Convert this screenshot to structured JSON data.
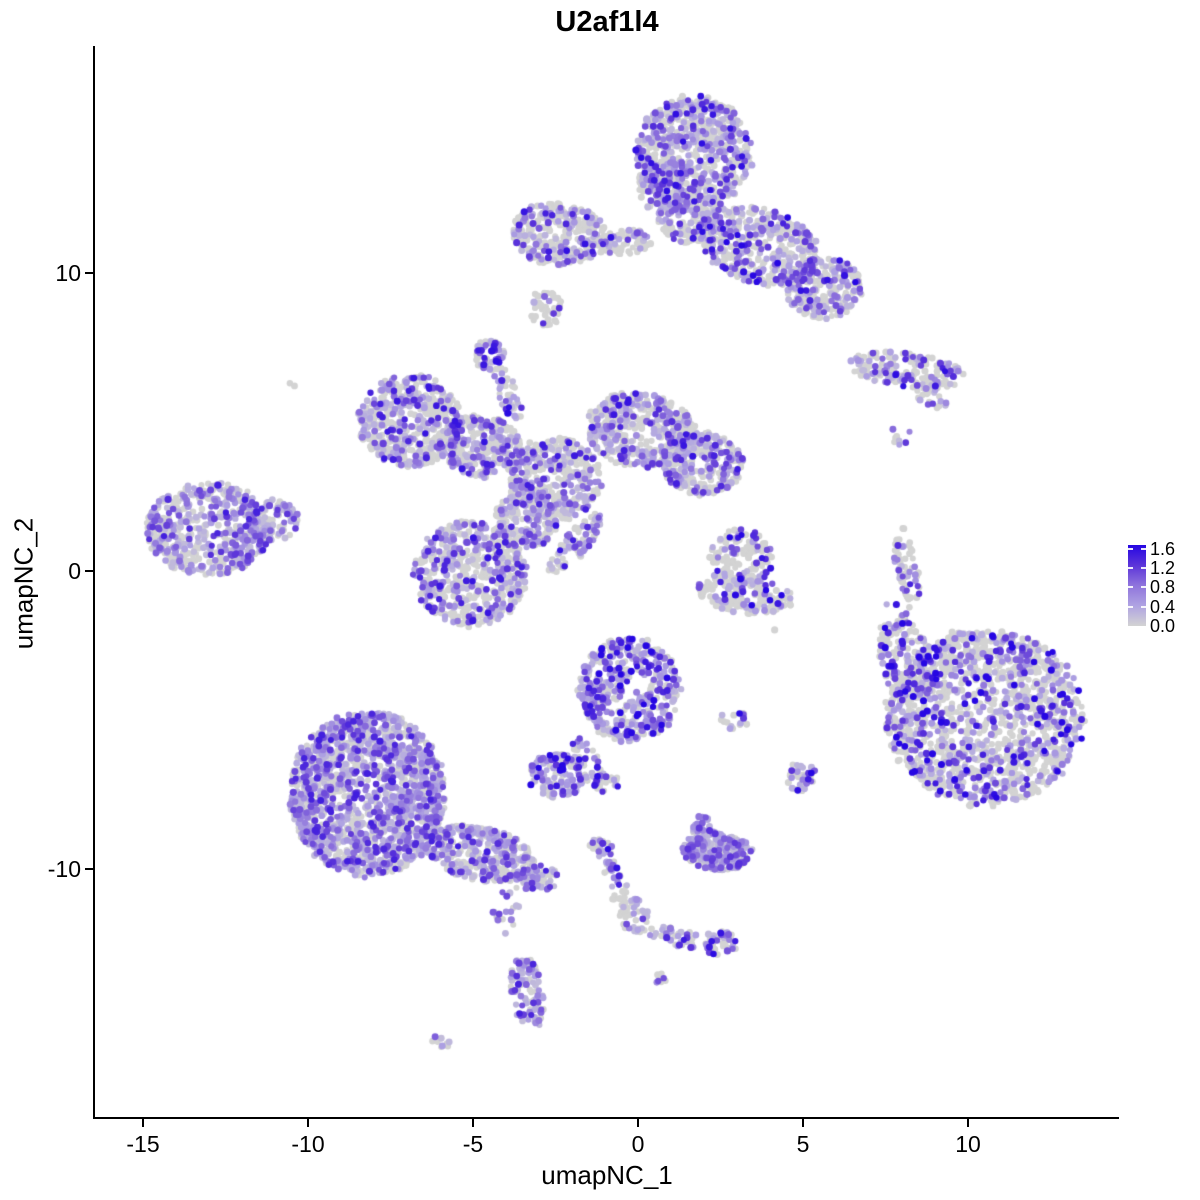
{
  "title": "U2af1l4",
  "axes": {
    "x": {
      "label": "umapNC_1",
      "ticks": [
        -15,
        -10,
        -5,
        0,
        5,
        10
      ],
      "range": [
        -16.45,
        14.57
      ]
    },
    "y": {
      "label": "umapNC_2",
      "ticks": [
        -10,
        0,
        10
      ],
      "range": [
        -18.36,
        17.58
      ]
    }
  },
  "legend": {
    "labels": [
      "1.6",
      "1.2",
      "0.8",
      "0.4",
      "0.0"
    ],
    "values": [
      1.6,
      1.2,
      0.8,
      0.4,
      0.0
    ],
    "tick_values": [
      0.4,
      0.8,
      1.2,
      1.6
    ],
    "max": 1.68
  },
  "colors": {
    "background": "#FFFFFF",
    "axis": "#000000",
    "text": "#000000",
    "zero_point": "#D3D3D3",
    "gradient": [
      "#D3D3D3",
      "#AFA3E2",
      "#8F74DC",
      "#5C35D9",
      "#2606E3"
    ]
  },
  "render": {
    "seed": 1337,
    "point_radius": 3.3,
    "radius_jitter": 0.3
  },
  "chart_data": {
    "type": "scatter",
    "title": "U2af1l4",
    "xlabel": "umapNC_1",
    "ylabel": "umapNC_2",
    "xlim": [
      -16.45,
      14.57
    ],
    "ylim": [
      -18.36,
      17.58
    ],
    "value_range": [
      0.0,
      1.68
    ],
    "legend_breaks": [
      0.0,
      0.4,
      0.8,
      1.2,
      1.6
    ],
    "grid": false,
    "note": "UMAP feature plot; ~11000 cells; gray = zero expression, purple-blue = expression level; clusters parameterized as ellipse blobs in data coords",
    "clusters": [
      {
        "name": "top-head",
        "frac_pos": 0.45,
        "boost": 1.0,
        "blobs": [
          {
            "cx": 1.7,
            "cy": 14.0,
            "rx": 1.75,
            "ry": 1.95,
            "rot": 0,
            "n": 680
          },
          {
            "cx": 0.9,
            "cy": 13.0,
            "rx": 0.9,
            "ry": 1.1,
            "rot": 0,
            "n": 160
          }
        ]
      },
      {
        "name": "top-neck",
        "frac_pos": 0.38,
        "boost": 1.0,
        "blobs": [
          {
            "cx": 1.55,
            "cy": 11.9,
            "rx": 0.95,
            "ry": 0.9,
            "rot": 0,
            "n": 170
          }
        ]
      },
      {
        "name": "top-right-wing",
        "frac_pos": 0.42,
        "boost": 1.05,
        "blobs": [
          {
            "cx": 3.7,
            "cy": 10.9,
            "rx": 1.9,
            "ry": 1.25,
            "rot": -18,
            "n": 430
          },
          {
            "cx": 5.65,
            "cy": 9.5,
            "rx": 1.15,
            "ry": 1.05,
            "rot": 0,
            "n": 270
          }
        ]
      },
      {
        "name": "top-bridge",
        "frac_pos": 0.35,
        "boost": 1.0,
        "blobs": [
          {
            "cx": -0.4,
            "cy": 11.05,
            "rx": 0.8,
            "ry": 0.42,
            "rot": 5,
            "n": 90
          }
        ]
      },
      {
        "name": "top-left-wing",
        "frac_pos": 0.4,
        "boost": 1.0,
        "blobs": [
          {
            "cx": -2.4,
            "cy": 11.3,
            "rx": 1.45,
            "ry": 1.05,
            "rot": -8,
            "n": 300
          }
        ]
      },
      {
        "name": "small-blob-below-left-wing",
        "frac_pos": 0.15,
        "boost": 1.0,
        "blobs": [
          {
            "cx": -2.8,
            "cy": 8.8,
            "rx": 0.55,
            "ry": 0.62,
            "rot": 0,
            "n": 40
          }
        ]
      },
      {
        "name": "purple-knot",
        "frac_pos": 0.65,
        "boost": 1.05,
        "blobs": [
          {
            "cx": -4.5,
            "cy": 7.25,
            "rx": 0.45,
            "ry": 0.55,
            "rot": 0,
            "n": 55
          },
          {
            "cx": -3.95,
            "cy": 5.95,
            "rx": 0.32,
            "ry": 1.0,
            "rot": 20,
            "n": 45
          }
        ]
      },
      {
        "name": "central-network",
        "frac_pos": 0.45,
        "boost": 0.95,
        "blobs": [
          {
            "cx": -6.9,
            "cy": 5.05,
            "rx": 1.55,
            "ry": 1.55,
            "rot": 0,
            "n": 500
          },
          {
            "cx": -4.8,
            "cy": 4.2,
            "rx": 1.25,
            "ry": 1.05,
            "rot": -15,
            "n": 300
          },
          {
            "cx": -2.5,
            "cy": 3.1,
            "rx": 1.4,
            "ry": 1.4,
            "rot": 0,
            "n": 380
          },
          {
            "cx": 0.1,
            "cy": 4.7,
            "rx": 1.7,
            "ry": 1.25,
            "rot": -12,
            "n": 450
          },
          {
            "cx": 1.95,
            "cy": 3.6,
            "rx": 1.25,
            "ry": 1.05,
            "rot": 0,
            "n": 300
          },
          {
            "cx": -5.1,
            "cy": -0.1,
            "rx": 1.7,
            "ry": 1.75,
            "rot": 0,
            "n": 560
          },
          {
            "cx": -3.4,
            "cy": 1.7,
            "rx": 0.95,
            "ry": 0.95,
            "rot": 0,
            "n": 200
          },
          {
            "cx": -1.9,
            "cy": 0.9,
            "rx": 0.4,
            "ry": 1.25,
            "rot": -38,
            "n": 80
          }
        ]
      },
      {
        "name": "far-left",
        "frac_pos": 0.55,
        "boost": 0.9,
        "blobs": [
          {
            "cx": -13.0,
            "cy": 1.4,
            "rx": 1.9,
            "ry": 1.55,
            "rot": 0,
            "n": 540
          },
          {
            "cx": -11.1,
            "cy": 1.7,
            "rx": 0.8,
            "ry": 0.7,
            "rot": 0,
            "n": 100
          }
        ]
      },
      {
        "name": "lone-gray-dot",
        "frac_pos": 0.0,
        "boost": 1.0,
        "blobs": [
          {
            "cx": -10.5,
            "cy": 6.2,
            "rx": 0.12,
            "ry": 0.12,
            "rot": 0,
            "n": 2
          }
        ]
      },
      {
        "name": "right-top-strip",
        "frac_pos": 0.4,
        "boost": 1.0,
        "blobs": [
          {
            "cx": 8.1,
            "cy": 6.75,
            "rx": 1.75,
            "ry": 0.6,
            "rot": -8,
            "n": 180
          },
          {
            "cx": 8.9,
            "cy": 5.8,
            "rx": 0.55,
            "ry": 0.3,
            "rot": -30,
            "n": 22
          },
          {
            "cx": 7.9,
            "cy": 4.6,
            "rx": 0.35,
            "ry": 0.45,
            "rot": 0,
            "n": 8
          }
        ]
      },
      {
        "name": "right-arc",
        "frac_pos": 0.45,
        "boost": 1.0,
        "blobs": [
          {
            "cx": 8.15,
            "cy": 0.2,
            "rx": 0.35,
            "ry": 1.3,
            "rot": 10,
            "n": 62
          },
          {
            "cx": 8.2,
            "cy": -1.5,
            "rx": 0.2,
            "ry": 0.35,
            "rot": 0,
            "n": 5
          }
        ]
      },
      {
        "name": "center-small",
        "frac_pos": 0.31,
        "boost": 1.1,
        "blobs": [
          {
            "cx": 3.1,
            "cy": 0.4,
            "rx": 0.95,
            "ry": 1.0,
            "rot": 0,
            "n": 165
          },
          {
            "cx": 3.25,
            "cy": -0.8,
            "rx": 1.5,
            "ry": 0.62,
            "rot": -8,
            "n": 155
          }
        ]
      },
      {
        "name": "bottom-right-big",
        "frac_pos": 0.36,
        "boost": 1.2,
        "blobs": [
          {
            "cx": 10.5,
            "cy": -4.9,
            "rx": 3.0,
            "ry": 2.95,
            "rot": 0,
            "n": 1500
          },
          {
            "cx": 8.1,
            "cy": -3.0,
            "rx": 0.8,
            "ry": 1.4,
            "rot": 15,
            "n": 170
          },
          {
            "cx": 7.7,
            "cy": -2.0,
            "rx": 0.5,
            "ry": 1.1,
            "rot": 0,
            "n": 14
          },
          {
            "cx": 4.95,
            "cy": -6.9,
            "rx": 0.45,
            "ry": 0.5,
            "rot": 0,
            "n": 40
          }
        ]
      },
      {
        "name": "mid-dense",
        "frac_pos": 0.66,
        "boost": 1.15,
        "blobs": [
          {
            "cx": -0.25,
            "cy": -4.0,
            "rx": 1.55,
            "ry": 1.75,
            "rot": 0,
            "n": 460
          },
          {
            "cx": -1.45,
            "cy": -6.5,
            "rx": 0.35,
            "ry": 1.0,
            "rot": 25,
            "n": 45
          },
          {
            "cx": -2.45,
            "cy": -6.85,
            "rx": 0.9,
            "ry": 0.75,
            "rot": 0,
            "n": 130
          },
          {
            "cx": -0.95,
            "cy": -7.1,
            "rx": 0.4,
            "ry": 0.3,
            "rot": 0,
            "n": 20
          }
        ]
      },
      {
        "name": "small-pair-right-of-mid",
        "frac_pos": 0.5,
        "boost": 1.0,
        "blobs": [
          {
            "cx": 2.9,
            "cy": -5.0,
            "rx": 0.5,
            "ry": 0.3,
            "rot": 0,
            "n": 18
          }
        ]
      },
      {
        "name": "bottom-left-big",
        "frac_pos": 0.62,
        "boost": 0.9,
        "blobs": [
          {
            "cx": -8.2,
            "cy": -7.5,
            "rx": 2.35,
            "ry": 2.75,
            "rot": 0,
            "n": 1650
          },
          {
            "cx": -4.8,
            "cy": -9.5,
            "rx": 1.7,
            "ry": 0.9,
            "rot": -14,
            "n": 360
          },
          {
            "cx": -3.0,
            "cy": -10.3,
            "rx": 0.6,
            "ry": 0.45,
            "rot": 0,
            "n": 60
          },
          {
            "cx": -4.0,
            "cy": -11.3,
            "rx": 0.4,
            "ry": 0.9,
            "rot": -5,
            "n": 22
          },
          {
            "cx": -3.35,
            "cy": -14.2,
            "rx": 0.5,
            "ry": 1.25,
            "rot": 8,
            "n": 110
          },
          {
            "cx": -6.0,
            "cy": -15.8,
            "rx": 0.3,
            "ry": 0.2,
            "rot": -20,
            "n": 9
          }
        ]
      },
      {
        "name": "bottom-mid-purple",
        "frac_pos": 0.75,
        "boost": 0.8,
        "blobs": [
          {
            "cx": 2.4,
            "cy": -9.4,
            "rx": 1.05,
            "ry": 0.65,
            "rot": -5,
            "n": 270
          },
          {
            "cx": 1.95,
            "cy": -8.5,
            "rx": 0.4,
            "ry": 0.4,
            "rot": 0,
            "n": 22
          }
        ]
      },
      {
        "name": "v-chain",
        "frac_pos": 0.55,
        "boost": 1.0,
        "blobs": [
          {
            "cx": -1.1,
            "cy": -9.3,
            "rx": 0.4,
            "ry": 0.3,
            "rot": -30,
            "n": 28
          },
          {
            "cx": -0.65,
            "cy": -10.5,
            "rx": 0.3,
            "ry": 0.85,
            "rot": 15,
            "n": 35
          },
          {
            "cx": -0.1,
            "cy": -11.6,
            "rx": 0.45,
            "ry": 0.6,
            "rot": 0,
            "n": 45
          },
          {
            "cx": 1.2,
            "cy": -12.3,
            "rx": 0.9,
            "ry": 0.32,
            "rot": -12,
            "n": 40
          },
          {
            "cx": 2.5,
            "cy": -12.5,
            "rx": 0.55,
            "ry": 0.4,
            "rot": 0,
            "n": 48
          },
          {
            "cx": 0.65,
            "cy": -13.7,
            "rx": 0.25,
            "ry": 0.2,
            "rot": 0,
            "n": 8
          }
        ]
      },
      {
        "name": "stray-gray-dot",
        "frac_pos": 0.0,
        "boost": 1.0,
        "blobs": [
          {
            "cx": 4.1,
            "cy": -2.0,
            "rx": 0.1,
            "ry": 0.1,
            "rot": 0,
            "n": 1
          }
        ]
      }
    ]
  }
}
